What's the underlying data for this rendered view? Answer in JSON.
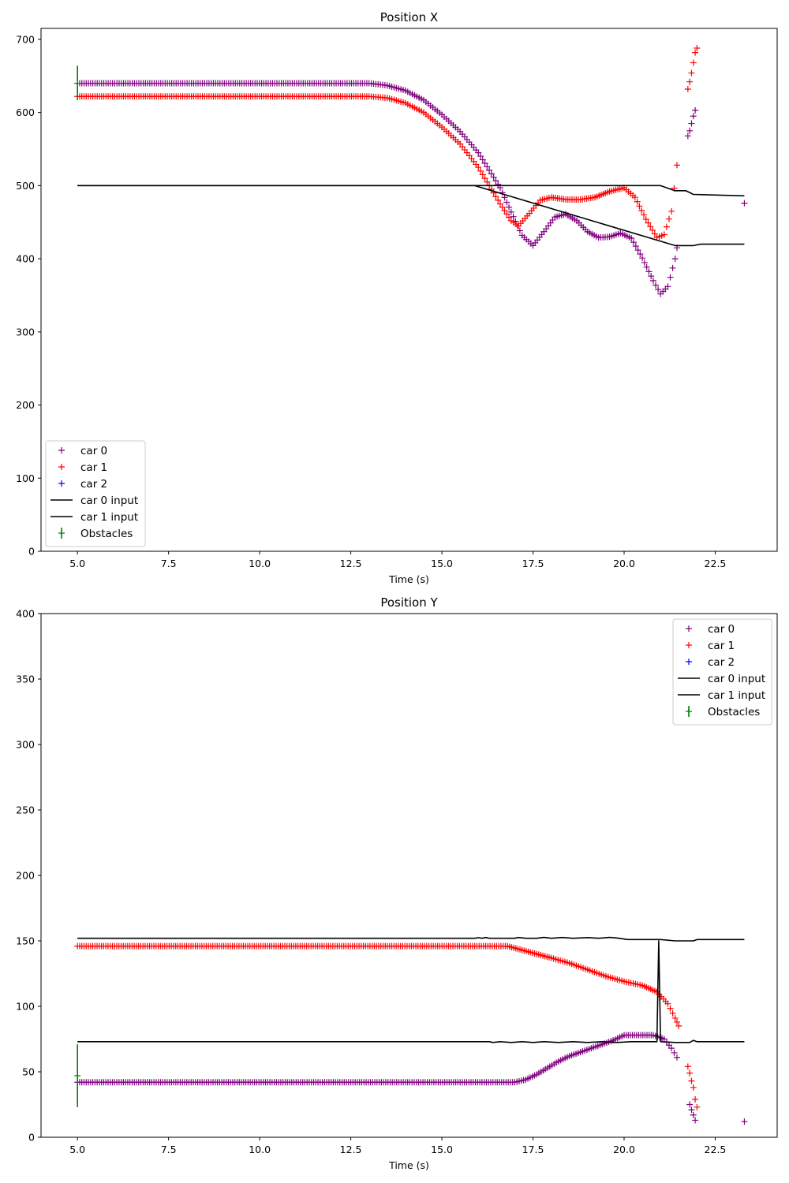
{
  "chart_data": [
    {
      "type": "scatter",
      "title": "Position X",
      "xlabel": "Time (s)",
      "ylabel": "",
      "xlim": [
        4.0,
        24.2
      ],
      "ylim": [
        0,
        715
      ],
      "xticks": [
        5.0,
        7.5,
        10.0,
        12.5,
        15.0,
        17.5,
        20.0,
        22.5
      ],
      "xtick_labels": [
        "5.0",
        "7.5",
        "10.0",
        "12.5",
        "15.0",
        "17.5",
        "20.0",
        "22.5"
      ],
      "yticks": [
        0,
        100,
        200,
        300,
        400,
        500,
        600,
        700
      ],
      "ytick_labels": [
        "0",
        "100",
        "200",
        "300",
        "400",
        "500",
        "600",
        "700"
      ],
      "grid": false,
      "legend_position": "lower-left",
      "legend": [
        {
          "label": "car 0",
          "kind": "marker",
          "color": "#800080"
        },
        {
          "label": "car 1",
          "kind": "marker",
          "color": "#ff0000"
        },
        {
          "label": "car 2",
          "kind": "marker",
          "color": "#0000ff"
        },
        {
          "label": "car 0 input",
          "kind": "line",
          "color": "#000000"
        },
        {
          "label": "car 1 input",
          "kind": "line",
          "color": "#000000"
        },
        {
          "label": "Obstacles",
          "kind": "errorbar",
          "color": "#008000"
        }
      ],
      "series": [
        {
          "name": "car 0",
          "kind": "marker",
          "color": "#800080",
          "points": [
            [
              5.0,
              640
            ],
            [
              13.0,
              640
            ],
            [
              13.5,
              637
            ],
            [
              14.0,
              630
            ],
            [
              14.5,
              617
            ],
            [
              15.0,
              597
            ],
            [
              15.5,
              574
            ],
            [
              16.0,
              545
            ],
            [
              16.3,
              521
            ],
            [
              16.6,
              497
            ],
            [
              16.9,
              464
            ],
            [
              17.2,
              432
            ],
            [
              17.5,
              418
            ],
            [
              17.8,
              437
            ],
            [
              18.1,
              457
            ],
            [
              18.4,
              461
            ],
            [
              18.7,
              452
            ],
            [
              19.0,
              437
            ],
            [
              19.3,
              429
            ],
            [
              19.6,
              430
            ],
            [
              19.9,
              435
            ],
            [
              20.2,
              428
            ],
            [
              20.5,
              401
            ],
            [
              20.8,
              370
            ],
            [
              21.0,
              352
            ],
            [
              21.2,
              362
            ],
            [
              21.4,
              400
            ],
            [
              21.45,
              415
            ]
          ],
          "extra_points": [
            [
              21.75,
              568
            ],
            [
              21.8,
              575
            ],
            [
              21.85,
              585
            ],
            [
              21.9,
              595
            ],
            [
              21.95,
              603
            ],
            [
              23.3,
              476
            ]
          ]
        },
        {
          "name": "car 1",
          "kind": "marker",
          "color": "#ff0000",
          "points": [
            [
              5.0,
              622
            ],
            [
              13.0,
              622
            ],
            [
              13.5,
              620
            ],
            [
              14.0,
              613
            ],
            [
              14.5,
              600
            ],
            [
              15.0,
              580
            ],
            [
              15.5,
              557
            ],
            [
              16.0,
              525
            ],
            [
              16.3,
              500
            ],
            [
              16.6,
              475
            ],
            [
              16.9,
              452
            ],
            [
              17.1,
              445
            ],
            [
              17.4,
              462
            ],
            [
              17.7,
              480
            ],
            [
              18.0,
              484
            ],
            [
              18.4,
              481
            ],
            [
              18.8,
              481
            ],
            [
              19.2,
              484
            ],
            [
              19.6,
              492
            ],
            [
              20.0,
              497
            ],
            [
              20.3,
              484
            ],
            [
              20.6,
              454
            ],
            [
              20.9,
              429
            ],
            [
              21.1,
              433
            ],
            [
              21.3,
              465
            ],
            [
              21.45,
              528
            ]
          ],
          "extra_points": [
            [
              21.75,
              632
            ],
            [
              21.8,
              642
            ],
            [
              21.85,
              654
            ],
            [
              21.9,
              668
            ],
            [
              21.95,
              682
            ],
            [
              22.0,
              688
            ]
          ]
        },
        {
          "name": "car 0 input",
          "kind": "line",
          "color": "#000000",
          "points": [
            [
              5.0,
              500
            ],
            [
              15.9,
              500
            ],
            [
              21.0,
              500
            ],
            [
              21.4,
              493
            ],
            [
              21.7,
              493
            ],
            [
              21.9,
              488
            ],
            [
              23.3,
              486
            ]
          ]
        },
        {
          "name": "car 1 input",
          "kind": "line",
          "color": "#000000",
          "points": [
            [
              5.0,
              500
            ],
            [
              15.9,
              500
            ],
            [
              21.4,
              418
            ],
            [
              21.9,
              418
            ],
            [
              22.1,
              420
            ],
            [
              23.3,
              420
            ]
          ]
        },
        {
          "name": "Obstacles",
          "kind": "errorbar",
          "color": "#008000",
          "points": [
            [
              5.0,
              640,
              664,
              617
            ]
          ]
        }
      ]
    },
    {
      "type": "scatter",
      "title": "Position Y",
      "xlabel": "Time (s)",
      "ylabel": "",
      "xlim": [
        4.0,
        24.2
      ],
      "ylim": [
        0,
        400
      ],
      "xticks": [
        5.0,
        7.5,
        10.0,
        12.5,
        15.0,
        17.5,
        20.0,
        22.5
      ],
      "xtick_labels": [
        "5.0",
        "7.5",
        "10.0",
        "12.5",
        "15.0",
        "17.5",
        "20.0",
        "22.5"
      ],
      "yticks": [
        0,
        50,
        100,
        150,
        200,
        250,
        300,
        350,
        400
      ],
      "ytick_labels": [
        "0",
        "50",
        "100",
        "150",
        "200",
        "250",
        "300",
        "350",
        "400"
      ],
      "grid": false,
      "legend_position": "upper-right",
      "legend": [
        {
          "label": "car 0",
          "kind": "marker",
          "color": "#800080"
        },
        {
          "label": "car 1",
          "kind": "marker",
          "color": "#ff0000"
        },
        {
          "label": "car 2",
          "kind": "marker",
          "color": "#0000ff"
        },
        {
          "label": "car 0 input",
          "kind": "line",
          "color": "#000000"
        },
        {
          "label": "car 1 input",
          "kind": "line",
          "color": "#000000"
        },
        {
          "label": "Obstacles",
          "kind": "errorbar",
          "color": "#008000"
        }
      ],
      "series": [
        {
          "name": "car 0",
          "kind": "marker",
          "color": "#800080",
          "points": [
            [
              5.0,
              42
            ],
            [
              17.0,
              42
            ],
            [
              17.3,
              44
            ],
            [
              17.6,
              48
            ],
            [
              17.9,
              53
            ],
            [
              18.2,
              58
            ],
            [
              18.5,
              62
            ],
            [
              18.8,
              65
            ],
            [
              19.1,
              68
            ],
            [
              19.4,
              71
            ],
            [
              19.7,
              74
            ],
            [
              20.0,
              78
            ],
            [
              20.4,
              78
            ],
            [
              20.8,
              78
            ],
            [
              21.1,
              75
            ],
            [
              21.3,
              68
            ],
            [
              21.45,
              61
            ]
          ],
          "extra_points": [
            [
              21.8,
              25
            ],
            [
              21.85,
              21
            ],
            [
              21.9,
              17
            ],
            [
              21.95,
              13
            ],
            [
              23.3,
              12
            ]
          ]
        },
        {
          "name": "car 1",
          "kind": "marker",
          "color": "#ff0000",
          "points": [
            [
              5.0,
              146
            ],
            [
              16.8,
              146
            ],
            [
              17.2,
              143
            ],
            [
              17.6,
              140
            ],
            [
              18.0,
              137
            ],
            [
              18.5,
              133
            ],
            [
              19.0,
              128
            ],
            [
              19.5,
              123
            ],
            [
              20.0,
              119
            ],
            [
              20.5,
              116
            ],
            [
              20.9,
              111
            ],
            [
              21.2,
              102
            ],
            [
              21.4,
              91
            ],
            [
              21.5,
              85
            ]
          ],
          "extra_points": [
            [
              21.75,
              54
            ],
            [
              21.8,
              49
            ],
            [
              21.85,
              43
            ],
            [
              21.9,
              38
            ],
            [
              21.95,
              29
            ],
            [
              22.0,
              23
            ]
          ]
        },
        {
          "name": "car 0 input",
          "kind": "line",
          "color": "#000000",
          "points": [
            [
              5.0,
              152
            ],
            [
              15.9,
              152
            ],
            [
              16.0,
              152.5
            ],
            [
              16.1,
              152
            ],
            [
              16.2,
              152.6
            ],
            [
              16.3,
              152
            ],
            [
              17.0,
              152
            ],
            [
              17.1,
              152.6
            ],
            [
              17.3,
              152
            ],
            [
              17.6,
              152
            ],
            [
              17.8,
              152.7
            ],
            [
              18.0,
              152
            ],
            [
              18.3,
              152.6
            ],
            [
              18.6,
              152
            ],
            [
              19.0,
              152.5
            ],
            [
              19.3,
              152
            ],
            [
              19.6,
              152.7
            ],
            [
              19.8,
              152.2
            ],
            [
              20.1,
              151
            ],
            [
              21.0,
              151
            ],
            [
              21.4,
              150
            ],
            [
              21.9,
              150
            ],
            [
              22.0,
              151
            ],
            [
              23.3,
              151
            ]
          ]
        },
        {
          "name": "car 1 input",
          "kind": "line",
          "color": "#000000",
          "points": [
            [
              5.0,
              73
            ],
            [
              16.3,
              73
            ],
            [
              16.4,
              72.4
            ],
            [
              16.6,
              73
            ],
            [
              16.9,
              72.4
            ],
            [
              17.2,
              73
            ],
            [
              17.5,
              72.4
            ],
            [
              17.8,
              73
            ],
            [
              18.2,
              72.4
            ],
            [
              18.6,
              73
            ],
            [
              19.0,
              72.4
            ],
            [
              19.4,
              73
            ],
            [
              19.8,
              72.4
            ],
            [
              20.2,
              73
            ],
            [
              20.9,
              73
            ],
            [
              20.95,
              150
            ],
            [
              21.0,
              73
            ],
            [
              21.4,
              72.4
            ],
            [
              21.8,
              72.4
            ],
            [
              21.9,
              74
            ],
            [
              22.0,
              73
            ],
            [
              23.3,
              73
            ]
          ]
        },
        {
          "name": "Obstacles",
          "kind": "errorbar",
          "color": "#008000",
          "points": [
            [
              5.0,
              47,
              71,
              23
            ]
          ]
        }
      ]
    }
  ]
}
